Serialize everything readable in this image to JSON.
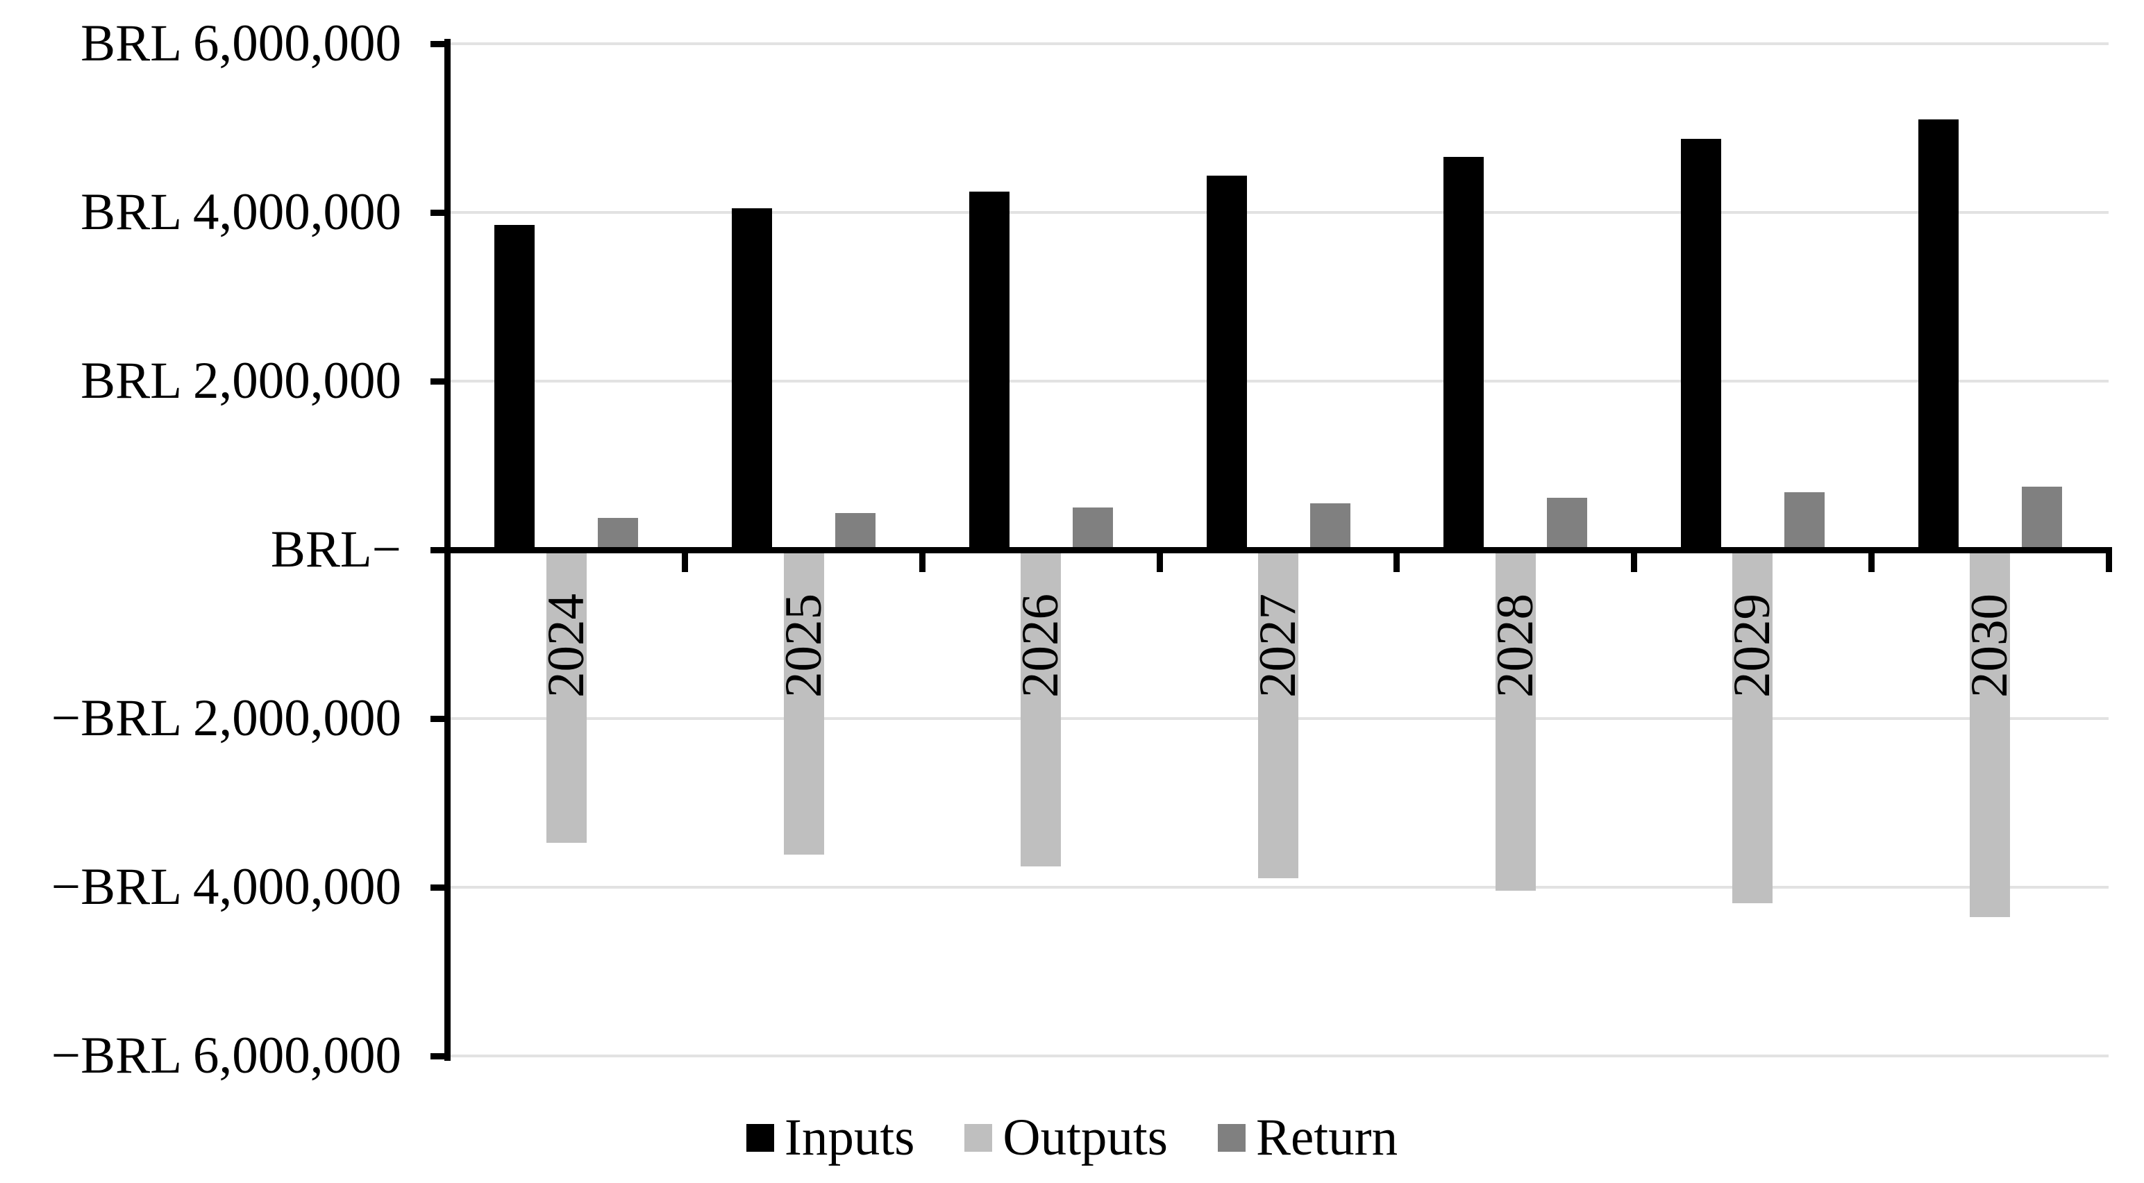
{
  "chart_data": {
    "type": "bar",
    "title": "",
    "currency": "BRL",
    "categories": [
      "2024",
      "2025",
      "2026",
      "2027",
      "2028",
      "2029",
      "2030"
    ],
    "series": [
      {
        "name": "Inputs",
        "color": "#000000",
        "values": [
          3850000,
          4050000,
          4250000,
          4440000,
          4660000,
          4870000,
          5100000
        ]
      },
      {
        "name": "Outputs",
        "color": "#bfbfbf",
        "values": [
          -3470000,
          -3610000,
          -3750000,
          -3890000,
          -4040000,
          -4190000,
          -4350000
        ]
      },
      {
        "name": "Return",
        "color": "#808080",
        "values": [
          380000,
          440000,
          500000,
          550000,
          620000,
          680000,
          750000
        ]
      }
    ],
    "y_axis": {
      "min": -6000000,
      "max": 6000000,
      "step": 2000000,
      "tick_labels": [
        "BRL 6,000,000",
        "BRL 4,000,000",
        "BRL 2,000,000",
        "BRL−",
        "−BRL 2,000,000",
        "−BRL 4,000,000",
        "−BRL 6,000,000"
      ]
    },
    "legend": [
      "Inputs",
      "Outputs",
      "Return"
    ],
    "legend_position": "bottom",
    "grid": true,
    "gridline_color": "#e2e2e2",
    "axis_color": "#000000",
    "background": "#ffffff",
    "bar_orientation": "vertical",
    "category_label_rotation_deg": -90
  }
}
